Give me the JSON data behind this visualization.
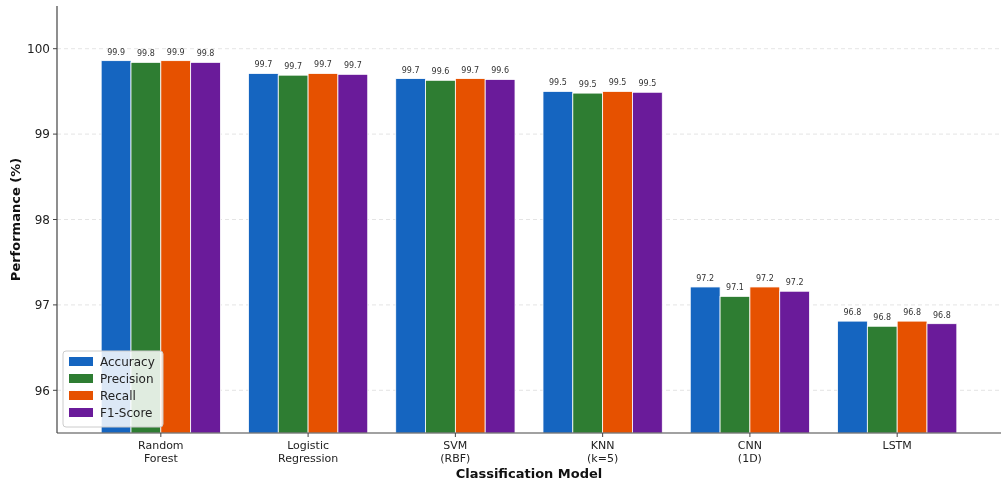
{
  "chart_data": {
    "type": "bar",
    "xlabel": "Classification Model",
    "ylabel": "Performance (%)",
    "categories": [
      "Random\nForest",
      "Logistic\nRegression",
      "SVM\n(RBF)",
      "KNN\n(k=5)",
      "CNN\n(1D)",
      "LSTM"
    ],
    "series": [
      {
        "name": "Accuracy",
        "color": "#1565c0",
        "values": [
          99.86,
          99.71,
          99.65,
          99.5,
          97.21,
          96.81
        ],
        "value_labels": [
          "99.9",
          "99.7",
          "99.7",
          "99.5",
          "97.2",
          "96.8"
        ]
      },
      {
        "name": "Precision",
        "color": "#2e7d32",
        "values": [
          99.84,
          99.69,
          99.63,
          99.48,
          97.1,
          96.75
        ],
        "value_labels": [
          "99.8",
          "99.7",
          "99.6",
          "99.5",
          "97.1",
          "96.8"
        ]
      },
      {
        "name": "Recall",
        "color": "#e65100",
        "values": [
          99.86,
          99.71,
          99.65,
          99.5,
          97.21,
          96.81
        ],
        "value_labels": [
          "99.9",
          "99.7",
          "99.7",
          "99.5",
          "97.2",
          "96.8"
        ]
      },
      {
        "name": "F1-Score",
        "color": "#6a1b9a",
        "values": [
          99.84,
          99.7,
          99.64,
          99.49,
          97.16,
          96.78
        ],
        "value_labels": [
          "99.8",
          "99.7",
          "99.6",
          "99.5",
          "97.2",
          "96.8"
        ]
      }
    ],
    "ylim": [
      95.5,
      100.5
    ],
    "yticks": [
      96,
      97,
      98,
      99,
      100
    ],
    "grid": "y",
    "legend": "bottom left"
  }
}
